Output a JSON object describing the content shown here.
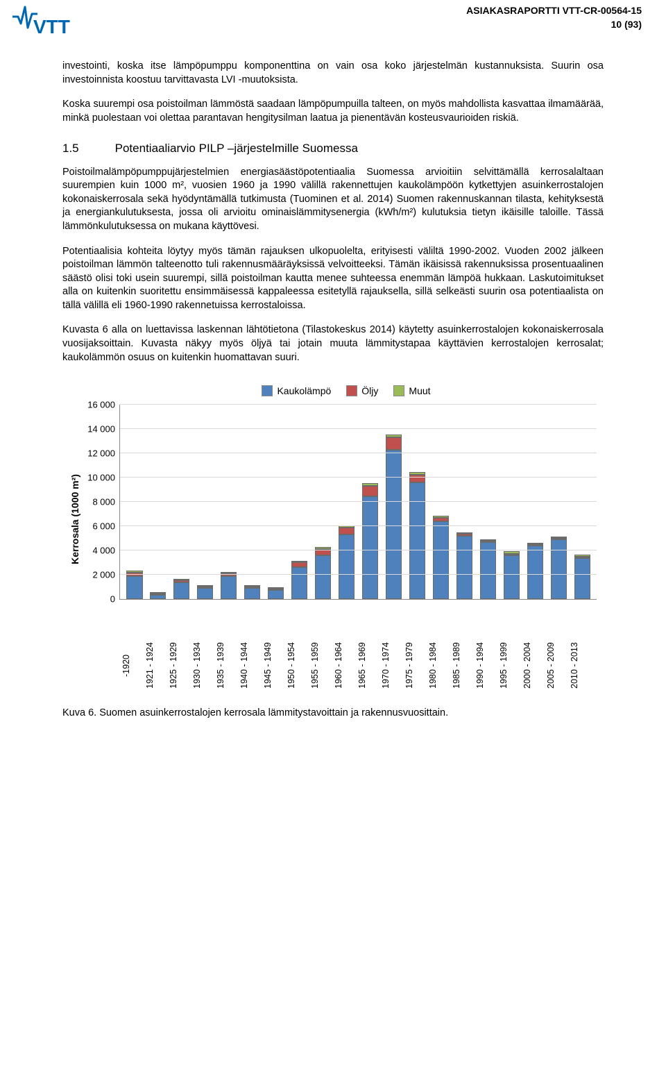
{
  "header": {
    "report_id": "ASIAKASRAPORTTI VTT-CR-00564-15",
    "page_label": "10 (93)"
  },
  "paragraphs": {
    "p1": "investointi, koska itse lämpöpumppu komponenttina on vain osa koko järjestelmän kustannuksista. Suurin osa investoinnista koostuu tarvittavasta LVI -muutoksista.",
    "p2": "Koska suurempi osa poistoilman lämmöstä saadaan lämpöpumpuilla talteen, on myös mahdollista kasvattaa ilmamäärää, minkä puolestaan voi olettaa parantavan hengitysilman laatua ja pienentävän kosteusvaurioiden riskiä.",
    "p3": "Poistoilmalämpöpumppujärjestelmien energiasäästöpotentiaalia Suomessa arvioitiin selvittämällä kerrosalaltaan suurempien kuin 1000 m², vuosien 1960 ja 1990 välillä rakennettujen kaukolämpöön kytkettyjen asuinkerrostalojen kokonaiskerrosala sekä hyödyntämällä tutkimusta (Tuominen et al. 2014) Suomen rakennuskannan tilasta, kehityksestä ja energiankulutuksesta, jossa oli arvioitu ominaislämmitysenergia (kWh/m²) kulutuksia tietyn ikäisille taloille. Tässä lämmönkulutuksessa on mukana käyttövesi.",
    "p4": "Potentiaalisia kohteita löytyy myös tämän rajauksen ulkopuolelta, erityisesti väliltä 1990-2002. Vuoden 2002 jälkeen poistoilman lämmön talteenotto tuli rakennusmääräyksissä velvoitteeksi. Tämän ikäisissä rakennuksissa prosentuaalinen säästö olisi toki usein suurempi, sillä poistoilman kautta menee suhteessa enemmän lämpöä hukkaan. Laskutoimitukset alla on kuitenkin suoritettu ensimmäisessä kappaleessa esitetyllä rajauksella, sillä selkeästi suurin osa potentiaalista on tällä välillä eli 1960-1990 rakennetuissa kerrostaloissa.",
    "p5": "Kuvasta 6 alla on luettavissa laskennan lähtötietona (Tilastokeskus 2014) käytetty asuinkerrostalojen kokonaiskerrosala vuosijaksoittain. Kuvasta näkyy myös öljyä tai jotain muuta lämmitystapaa käyttävien kerrostalojen kerrosalat; kaukolämmön osuus on kuitenkin huomattavan suuri."
  },
  "section": {
    "number": "1.5",
    "title": "Potentiaaliarvio PILP –järjestelmille Suomessa"
  },
  "chart": {
    "type": "stacked-bar",
    "y_label": "Kerrosala (1000 m²)",
    "y_max": 16000,
    "y_ticks": [
      0,
      2000,
      4000,
      6000,
      8000,
      10000,
      12000,
      14000,
      16000
    ],
    "legend": [
      {
        "label": "Kaukolämpö",
        "color": "#4f81bd"
      },
      {
        "label": "Öljy",
        "color": "#c0504d"
      },
      {
        "label": "Muut",
        "color": "#9bbb59"
      }
    ],
    "series_colors": {
      "kauko": "#4f81bd",
      "oljy": "#c0504d",
      "muut": "#9bbb59"
    },
    "grid_color": "#d9d9d9",
    "axis_color": "#888888",
    "background_color": "#ffffff",
    "categories": [
      "-1920",
      "1921 - 1924",
      "1925 - 1929",
      "1930 - 1934",
      "1935 - 1939",
      "1940 - 1944",
      "1945 - 1949",
      "1950 - 1954",
      "1955 - 1959",
      "1960 - 1964",
      "1965 - 1969",
      "1970 - 1974",
      "1975 - 1979",
      "1980 - 1984",
      "1985 - 1989",
      "1990 - 1994",
      "1995 - 1999",
      "2000 - 2004",
      "2005 - 2009",
      "2010 - 2013"
    ],
    "data": [
      {
        "kauko": 1900,
        "oljy": 250,
        "muut": 220
      },
      {
        "kauko": 350,
        "oljy": 60,
        "muut": 60
      },
      {
        "kauko": 1400,
        "oljy": 160,
        "muut": 120
      },
      {
        "kauko": 900,
        "oljy": 110,
        "muut": 90
      },
      {
        "kauko": 1900,
        "oljy": 220,
        "muut": 120
      },
      {
        "kauko": 900,
        "oljy": 110,
        "muut": 80
      },
      {
        "kauko": 750,
        "oljy": 100,
        "muut": 80
      },
      {
        "kauko": 2650,
        "oljy": 360,
        "muut": 150
      },
      {
        "kauko": 3600,
        "oljy": 520,
        "muut": 180
      },
      {
        "kauko": 5300,
        "oljy": 600,
        "muut": 180
      },
      {
        "kauko": 8450,
        "oljy": 850,
        "muut": 240
      },
      {
        "kauko": 12300,
        "oljy": 1000,
        "muut": 260
      },
      {
        "kauko": 9600,
        "oljy": 650,
        "muut": 200
      },
      {
        "kauko": 6400,
        "oljy": 300,
        "muut": 160
      },
      {
        "kauko": 5200,
        "oljy": 150,
        "muut": 130
      },
      {
        "kauko": 4700,
        "oljy": 80,
        "muut": 130
      },
      {
        "kauko": 3600,
        "oljy": 60,
        "muut": 250
      },
      {
        "kauko": 4400,
        "oljy": 60,
        "muut": 130
      },
      {
        "kauko": 4900,
        "oljy": 50,
        "muut": 130
      },
      {
        "kauko": 3400,
        "oljy": 40,
        "muut": 120
      }
    ]
  },
  "caption": "Kuva 6. Suomen asuinkerrostalojen kerrosala lämmitystavoittain ja rakennusvuosittain."
}
